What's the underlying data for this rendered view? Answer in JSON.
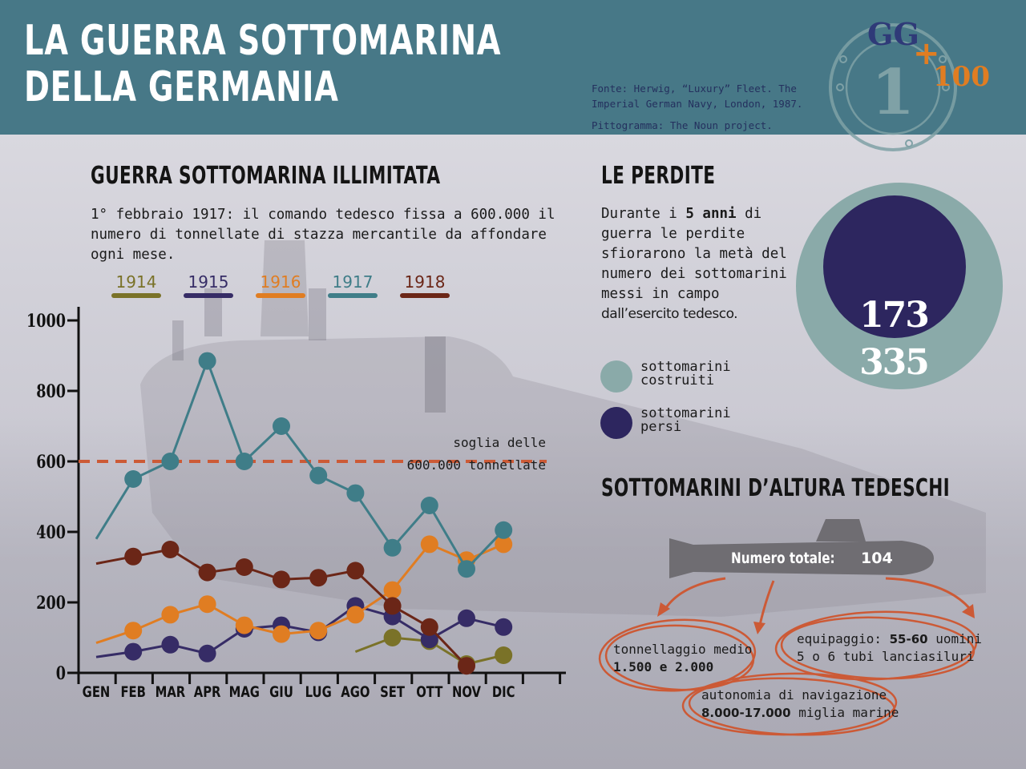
{
  "header": {
    "title_line1": "La guerra sottomarina",
    "title_line2": "della Germania",
    "source_line1": "Fonte: Herwig, “Luxury” Fleet. The",
    "source_line2": "Imperial German Navy, London, 1987.",
    "pictogram": "Pittogramma: The Noun project.",
    "stamp": {
      "gg": "GG",
      "plus": "+",
      "hundred": "100",
      "one": "1"
    }
  },
  "unrestricted": {
    "title": "Guerra sottomarina illimitata",
    "intro": "1° febbraio 1917: il comando tedesco fissa a 600.000 il numero di tonnellate di stazza mercantile da affondare ogni mese.",
    "threshold_label_1": "soglia delle",
    "threshold_label_2": "600.000 tonnellate"
  },
  "losses": {
    "title": "Le perdite",
    "text_pre": "Durante i ",
    "text_bold": "5 anni",
    "text_mid": " di guerra le perdite sfiorarono la metà del numero dei sottomarini messi in campo ",
    "text_tail": "dall’esercito tedesco.",
    "built_value": "335",
    "lost_value": "173",
    "legend_built": "sottomarini costruiti",
    "legend_lost": "sottomarini persi",
    "color_built": "#8aaaa9",
    "color_lost": "#2d265f"
  },
  "uboats": {
    "title": "Sottomarini d’altura tedeschi",
    "total_label": "Numero totale:",
    "total_value": "104",
    "fact_tonnage_1": "tonnellaggio medio",
    "fact_tonnage_2": "1.500 e 2.000",
    "fact_crew_pre": "equipaggio: ",
    "fact_crew_bold": "55-60",
    "fact_crew_post": " uomini",
    "fact_tubes": "5 o 6 tubi lanciasiluri",
    "fact_range_1": "autonomia di navigazione",
    "fact_range_2_bold": "8.000-17.000",
    "fact_range_2_post": " miglia marine",
    "icon": "submarine-icon"
  },
  "chart_data": {
    "type": "line",
    "categories": [
      "Gen",
      "Feb",
      "Mar",
      "Apr",
      "Mag",
      "Giu",
      "Lug",
      "Ago",
      "Set",
      "Ott",
      "Nov",
      "Dic"
    ],
    "ylim": [
      0,
      1000
    ],
    "yticks": [
      0,
      200,
      400,
      600,
      800,
      1000
    ],
    "threshold": 600,
    "grid": false,
    "legend_placement": "top",
    "series": [
      {
        "name": "1914",
        "color": "#7a7228",
        "values": [
          null,
          null,
          null,
          null,
          null,
          null,
          null,
          60,
          100,
          90,
          25,
          50
        ],
        "markers": [
          false,
          false,
          false,
          false,
          false,
          false,
          false,
          false,
          true,
          true,
          true,
          true
        ]
      },
      {
        "name": "1915",
        "color": "#362c66",
        "values": [
          45,
          60,
          80,
          55,
          125,
          135,
          115,
          190,
          160,
          95,
          155,
          130
        ],
        "markers": [
          false,
          true,
          true,
          true,
          true,
          true,
          true,
          true,
          true,
          true,
          true,
          true
        ]
      },
      {
        "name": "1916",
        "color": "#e07d22",
        "values": [
          85,
          120,
          165,
          195,
          135,
          110,
          120,
          165,
          235,
          365,
          320,
          365
        ],
        "markers": [
          false,
          true,
          true,
          true,
          true,
          true,
          true,
          true,
          true,
          true,
          true,
          true
        ]
      },
      {
        "name": "1917",
        "color": "#3f7d88",
        "values": [
          380,
          550,
          600,
          885,
          600,
          700,
          560,
          510,
          355,
          475,
          295,
          405
        ],
        "markers": [
          false,
          true,
          true,
          true,
          true,
          true,
          true,
          true,
          true,
          true,
          true,
          true
        ]
      },
      {
        "name": "1918",
        "color": "#6b2617",
        "values": [
          310,
          330,
          350,
          285,
          300,
          265,
          270,
          290,
          190,
          130,
          20,
          null
        ],
        "markers": [
          false,
          true,
          true,
          true,
          true,
          true,
          true,
          true,
          true,
          true,
          true,
          false
        ]
      }
    ]
  }
}
